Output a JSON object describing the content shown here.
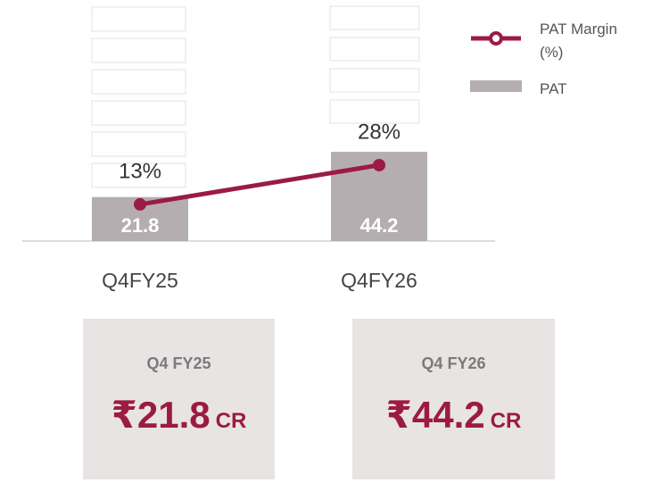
{
  "chart_data": {
    "type": "bar",
    "categories": [
      "Q4FY25",
      "Q4FY26"
    ],
    "series": [
      {
        "name": "PAT",
        "type": "bar",
        "color": "#b5aeb0",
        "values": [
          21.8,
          44.2
        ]
      },
      {
        "name": "PAT Margin (%)",
        "type": "line",
        "axis": "y2",
        "color": "#9b1b45",
        "values": [
          13,
          28
        ],
        "value_labels": [
          "13%",
          "28%"
        ]
      }
    ]
  },
  "cards": [
    {
      "label": "Q4 FY25",
      "amount": "₹21.8",
      "unit": "CR"
    },
    {
      "label": "Q4 FY26",
      "amount": "₹44.2",
      "unit": "CR"
    }
  ]
}
